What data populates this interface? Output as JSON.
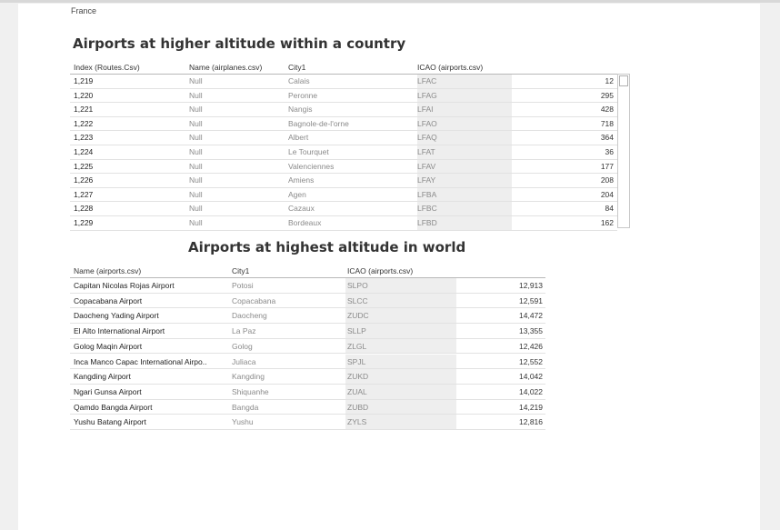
{
  "breadcrumb": "France",
  "table1": {
    "title": "Airports at higher altitude within a country",
    "headers": [
      "Index (Routes.Csv)",
      "Name (airplanes.csv)",
      "City1",
      "ICAO (airports.csv)"
    ],
    "rows": [
      {
        "index": "1,219",
        "name": "Null",
        "city": "Calais",
        "icao": "LFAC",
        "value": "12"
      },
      {
        "index": "1,220",
        "name": "Null",
        "city": "Peronne",
        "icao": "LFAG",
        "value": "295"
      },
      {
        "index": "1,221",
        "name": "Null",
        "city": "Nangis",
        "icao": "LFAI",
        "value": "428"
      },
      {
        "index": "1,222",
        "name": "Null",
        "city": "Bagnole-de-l'orne",
        "icao": "LFAO",
        "value": "718"
      },
      {
        "index": "1,223",
        "name": "Null",
        "city": "Albert",
        "icao": "LFAQ",
        "value": "364"
      },
      {
        "index": "1,224",
        "name": "Null",
        "city": "Le Tourquet",
        "icao": "LFAT",
        "value": "36"
      },
      {
        "index": "1,225",
        "name": "Null",
        "city": "Valenciennes",
        "icao": "LFAV",
        "value": "177"
      },
      {
        "index": "1,226",
        "name": "Null",
        "city": "Amiens",
        "icao": "LFAY",
        "value": "208"
      },
      {
        "index": "1,227",
        "name": "Null",
        "city": "Agen",
        "icao": "LFBA",
        "value": "204"
      },
      {
        "index": "1,228",
        "name": "Null",
        "city": "Cazaux",
        "icao": "LFBC",
        "value": "84"
      },
      {
        "index": "1,229",
        "name": "Null",
        "city": "Bordeaux",
        "icao": "LFBD",
        "value": "162"
      }
    ]
  },
  "table2": {
    "title": "Airports at highest altitude in world",
    "headers": [
      "Name (airports.csv)",
      "City1",
      "ICAO (airports.csv)"
    ],
    "rows": [
      {
        "name": "Capitan Nicolas Rojas Airport",
        "city": "Potosi",
        "icao": "SLPO",
        "value": "12,913"
      },
      {
        "name": "Copacabana Airport",
        "city": "Copacabana",
        "icao": "SLCC",
        "value": "12,591"
      },
      {
        "name": "Daocheng Yading Airport",
        "city": "Daocheng",
        "icao": "ZUDC",
        "value": "14,472"
      },
      {
        "name": "El Alto International Airport",
        "city": "La Paz",
        "icao": "SLLP",
        "value": "13,355"
      },
      {
        "name": "Golog Maqin Airport",
        "city": "Golog",
        "icao": "ZLGL",
        "value": "12,426"
      },
      {
        "name": "Inca Manco Capac International Airpo..",
        "city": "Juliaca",
        "icao": "SPJL",
        "value": "12,552"
      },
      {
        "name": "Kangding Airport",
        "city": "Kangding",
        "icao": "ZUKD",
        "value": "14,042"
      },
      {
        "name": "Ngari Gunsa Airport",
        "city": "Shiquanhe",
        "icao": "ZUAL",
        "value": "14,022"
      },
      {
        "name": "Qamdo Bangda Airport",
        "city": "Bangda",
        "icao": "ZUBD",
        "value": "14,219"
      },
      {
        "name": "Yushu Batang Airport",
        "city": "Yushu",
        "icao": "ZYLS",
        "value": "12,816"
      }
    ]
  }
}
